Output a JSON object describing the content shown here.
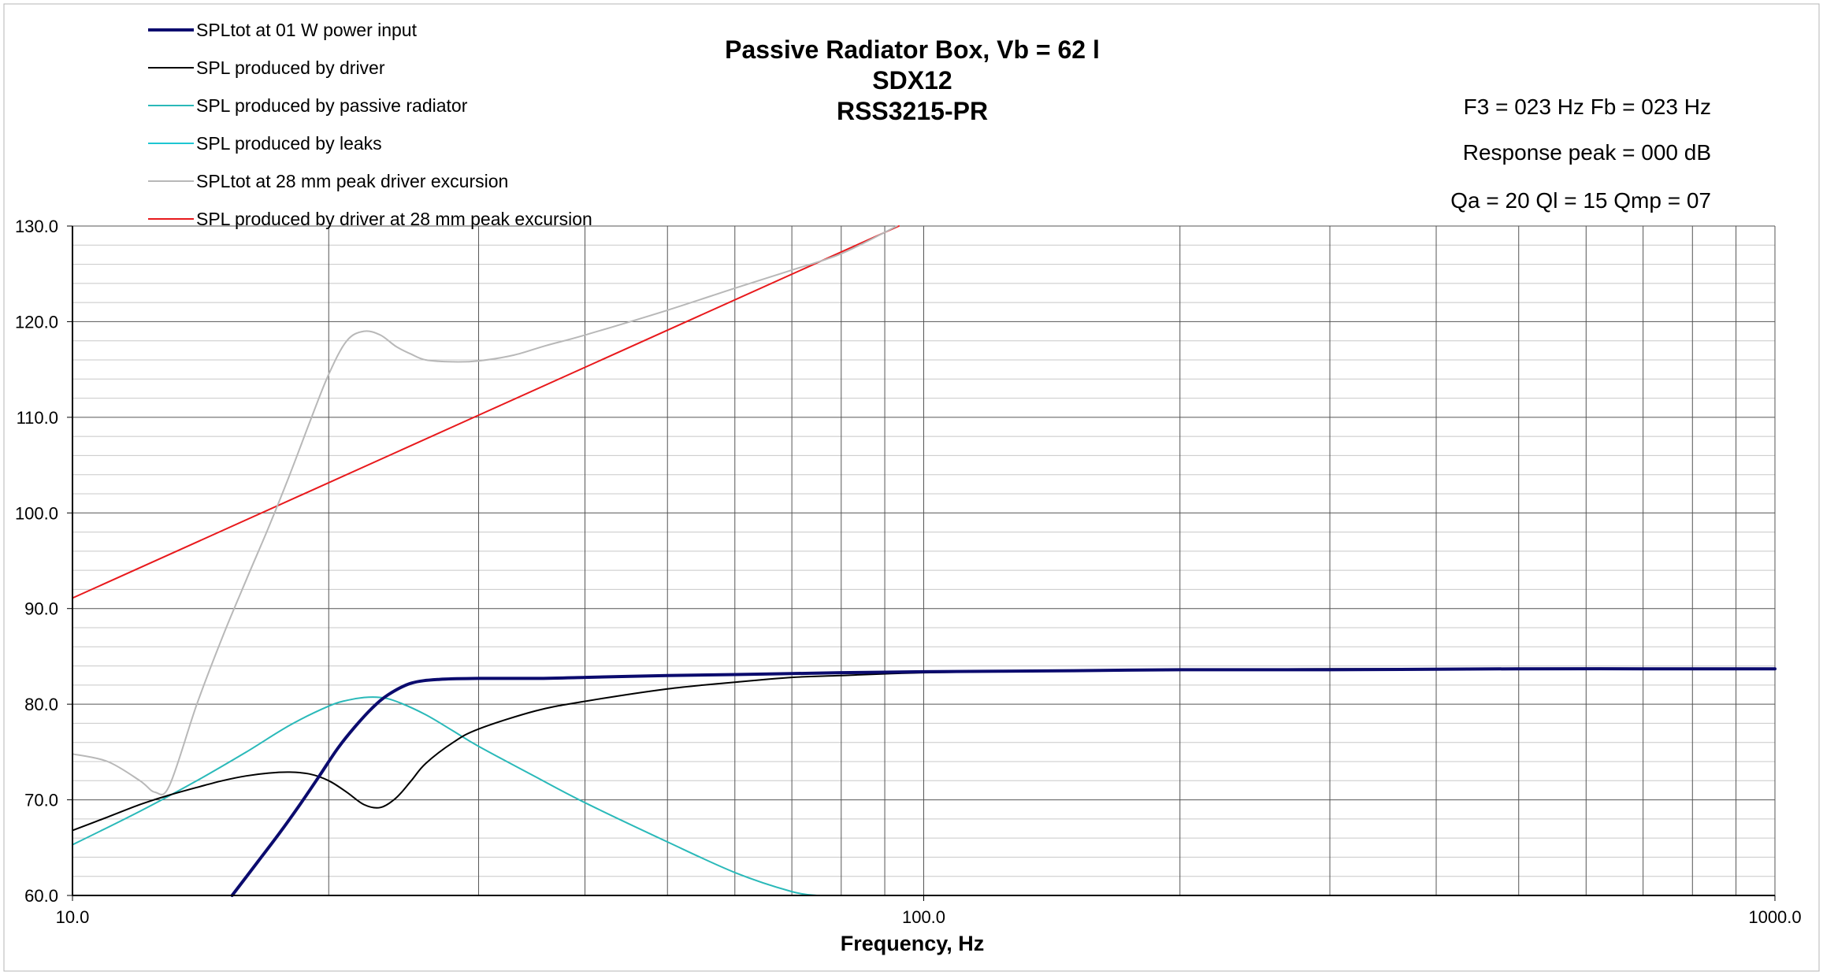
{
  "chart_data": {
    "type": "line",
    "title_lines": [
      "Passive Radiator Box, Vb = 62 l",
      "SDX12",
      "RSS3215-PR"
    ],
    "info_lines": [
      "F3 = 023 Hz  Fb = 023 Hz",
      "Response peak = 000 dB",
      "Qa = 20  Ql = 15  Qmp = 07"
    ],
    "xlabel": "Frequency, Hz",
    "ylabel": "",
    "x_scale": "log",
    "xlim": [
      10,
      1000
    ],
    "ylim": [
      60,
      130
    ],
    "x_tick_labels": [
      "10.0",
      "100.0",
      "1000.0"
    ],
    "x_ticks": [
      10,
      100,
      1000
    ],
    "y_tick_labels": [
      "60.0",
      "70.0",
      "80.0",
      "90.0",
      "100.0",
      "110.0",
      "120.0",
      "130.0"
    ],
    "y_ticks": [
      60,
      70,
      80,
      90,
      100,
      110,
      120,
      130
    ],
    "grid": true,
    "legend_position": "top-left",
    "series": [
      {
        "name": "SPLtot at 01 W power input",
        "color": "#0b0b6e",
        "width": 4,
        "x": [
          15.4,
          16.5,
          17.5,
          18.5,
          19.5,
          20.5,
          21.5,
          22.5,
          23.5,
          25,
          27,
          30,
          35,
          40,
          50,
          60,
          70,
          80,
          100,
          150,
          200,
          300,
          500,
          700,
          1000
        ],
        "y": [
          60,
          63.5,
          66.5,
          69.5,
          72.5,
          75.4,
          77.7,
          79.6,
          81,
          82.2,
          82.6,
          82.7,
          82.7,
          82.8,
          83,
          83.1,
          83.2,
          83.3,
          83.4,
          83.5,
          83.6,
          83.6,
          83.7,
          83.7,
          83.7
        ]
      },
      {
        "name": "SPL produced by driver",
        "color": "#000000",
        "width": 2,
        "x": [
          10,
          11,
          12,
          13,
          14,
          15,
          16,
          17,
          18,
          19,
          20,
          21,
          22,
          23,
          24,
          25,
          26,
          28,
          30,
          35,
          40,
          50,
          60,
          70,
          80,
          100,
          150,
          200,
          300,
          500,
          1000
        ],
        "y": [
          66.8,
          68.2,
          69.5,
          70.5,
          71.3,
          72,
          72.5,
          72.8,
          72.9,
          72.7,
          72,
          70.8,
          69.5,
          69.2,
          70.2,
          72,
          73.8,
          76,
          77.4,
          79.3,
          80.3,
          81.6,
          82.3,
          82.8,
          83,
          83.3,
          83.5,
          83.6,
          83.7,
          83.7,
          83.7
        ]
      },
      {
        "name": "SPL produced by passive radiator",
        "color": "#2ab9b9",
        "width": 2,
        "x": [
          10,
          12,
          14,
          16,
          18,
          20,
          21,
          22,
          23,
          24,
          26,
          28,
          30,
          35,
          40,
          50,
          60,
          70,
          75
        ],
        "y": [
          65.3,
          68.8,
          72,
          75,
          77.8,
          79.8,
          80.4,
          80.7,
          80.7,
          80.3,
          78.9,
          77.2,
          75.6,
          72.4,
          69.7,
          65.6,
          62.4,
          60.4,
          60
        ]
      },
      {
        "name": "SPL produced by leaks",
        "color": "#1ec6d2",
        "width": 2,
        "x": [],
        "y": []
      },
      {
        "name": "SPLtot at 28 mm peak driver excursion",
        "color": "#b8b8b8",
        "width": 2,
        "x": [
          10,
          11,
          12,
          12.5,
          13,
          14,
          15,
          16,
          17,
          18,
          19,
          20,
          21,
          22,
          23,
          24,
          25,
          26,
          28,
          30,
          33,
          36,
          40,
          50,
          60,
          70,
          80,
          93
        ],
        "y": [
          74.8,
          74,
          72,
          70.8,
          71.5,
          80,
          87,
          93,
          98.5,
          104,
          109.5,
          114.5,
          118,
          119,
          118.6,
          117.4,
          116.6,
          116,
          115.8,
          115.9,
          116.5,
          117.5,
          118.6,
          121.2,
          123.5,
          125.4,
          127.1,
          130
        ]
      },
      {
        "name": "SPL produced by driver at 28 mm peak excursion",
        "color": "#e8191c",
        "width": 2,
        "x": [
          10,
          93.5
        ],
        "y": [
          91.1,
          130
        ]
      }
    ]
  }
}
